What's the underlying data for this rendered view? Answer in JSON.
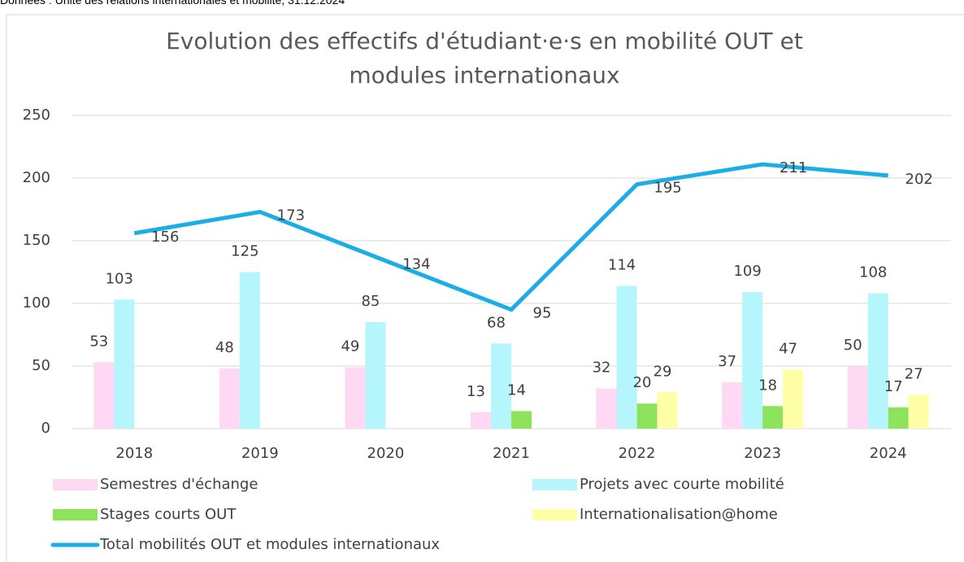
{
  "chart_data": {
    "type": "bar",
    "source": "Données : Unité des relations internationales et mobilité, 31.12.2024",
    "title": "Evolution des effectifs d'étudiant·e·s en mobilité OUT et modules internationaux",
    "categories": [
      "2018",
      "2019",
      "2020",
      "2021",
      "2022",
      "2023",
      "2024"
    ],
    "series": [
      {
        "name": "Semestres d'échange",
        "type": "bar",
        "color": "#ffd9f3",
        "values": [
          53,
          48,
          49,
          13,
          32,
          37,
          50
        ]
      },
      {
        "name": "Projets avec courte mobilité",
        "type": "bar",
        "color": "#b5f6fd",
        "values": [
          103,
          125,
          85,
          68,
          114,
          109,
          108
        ]
      },
      {
        "name": "Stages courts OUT",
        "type": "bar",
        "color": "#8ee35c",
        "values": [
          null,
          null,
          null,
          14,
          20,
          18,
          17
        ]
      },
      {
        "name": "Internationalisation@home",
        "type": "bar",
        "color": "#ffffa8",
        "values": [
          null,
          null,
          null,
          null,
          29,
          47,
          27
        ]
      },
      {
        "name": "Total mobilités OUT et modules internationaux",
        "type": "line",
        "color": "#1aaee5",
        "values": [
          156,
          173,
          134,
          95,
          195,
          211,
          202
        ]
      }
    ],
    "ylim": [
      0,
      250
    ],
    "yticks": [
      0,
      50,
      100,
      150,
      200,
      250
    ],
    "grid": true,
    "legend": "bottom"
  }
}
